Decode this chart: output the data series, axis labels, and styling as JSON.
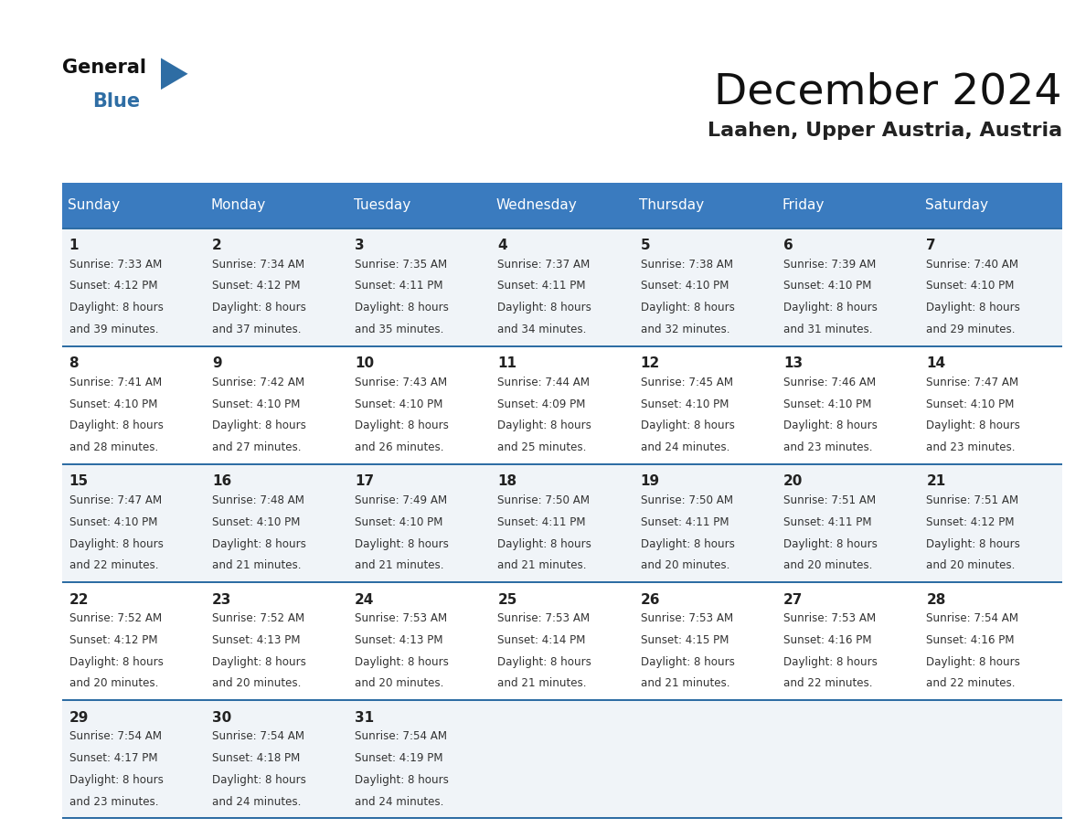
{
  "title": "December 2024",
  "subtitle": "Laahen, Upper Austria, Austria",
  "header_bg": "#3a7bbf",
  "header_text": "#ffffff",
  "days_of_week": [
    "Sunday",
    "Monday",
    "Tuesday",
    "Wednesday",
    "Thursday",
    "Friday",
    "Saturday"
  ],
  "row_bg_odd": "#f0f4f8",
  "row_bg_even": "#ffffff",
  "row_separator_color": "#2e6da4",
  "day_number_color": "#222222",
  "cell_text_color": "#333333",
  "logo_general_color": "#111111",
  "logo_blue_color": "#2e6da4",
  "calendar": [
    [
      {
        "day": 1,
        "sunrise": "7:33 AM",
        "sunset": "4:12 PM",
        "daylight": "8 hours",
        "daylight2": "and 39 minutes."
      },
      {
        "day": 2,
        "sunrise": "7:34 AM",
        "sunset": "4:12 PM",
        "daylight": "8 hours",
        "daylight2": "and 37 minutes."
      },
      {
        "day": 3,
        "sunrise": "7:35 AM",
        "sunset": "4:11 PM",
        "daylight": "8 hours",
        "daylight2": "and 35 minutes."
      },
      {
        "day": 4,
        "sunrise": "7:37 AM",
        "sunset": "4:11 PM",
        "daylight": "8 hours",
        "daylight2": "and 34 minutes."
      },
      {
        "day": 5,
        "sunrise": "7:38 AM",
        "sunset": "4:10 PM",
        "daylight": "8 hours",
        "daylight2": "and 32 minutes."
      },
      {
        "day": 6,
        "sunrise": "7:39 AM",
        "sunset": "4:10 PM",
        "daylight": "8 hours",
        "daylight2": "and 31 minutes."
      },
      {
        "day": 7,
        "sunrise": "7:40 AM",
        "sunset": "4:10 PM",
        "daylight": "8 hours",
        "daylight2": "and 29 minutes."
      }
    ],
    [
      {
        "day": 8,
        "sunrise": "7:41 AM",
        "sunset": "4:10 PM",
        "daylight": "8 hours",
        "daylight2": "and 28 minutes."
      },
      {
        "day": 9,
        "sunrise": "7:42 AM",
        "sunset": "4:10 PM",
        "daylight": "8 hours",
        "daylight2": "and 27 minutes."
      },
      {
        "day": 10,
        "sunrise": "7:43 AM",
        "sunset": "4:10 PM",
        "daylight": "8 hours",
        "daylight2": "and 26 minutes."
      },
      {
        "day": 11,
        "sunrise": "7:44 AM",
        "sunset": "4:09 PM",
        "daylight": "8 hours",
        "daylight2": "and 25 minutes."
      },
      {
        "day": 12,
        "sunrise": "7:45 AM",
        "sunset": "4:10 PM",
        "daylight": "8 hours",
        "daylight2": "and 24 minutes."
      },
      {
        "day": 13,
        "sunrise": "7:46 AM",
        "sunset": "4:10 PM",
        "daylight": "8 hours",
        "daylight2": "and 23 minutes."
      },
      {
        "day": 14,
        "sunrise": "7:47 AM",
        "sunset": "4:10 PM",
        "daylight": "8 hours",
        "daylight2": "and 23 minutes."
      }
    ],
    [
      {
        "day": 15,
        "sunrise": "7:47 AM",
        "sunset": "4:10 PM",
        "daylight": "8 hours",
        "daylight2": "and 22 minutes."
      },
      {
        "day": 16,
        "sunrise": "7:48 AM",
        "sunset": "4:10 PM",
        "daylight": "8 hours",
        "daylight2": "and 21 minutes."
      },
      {
        "day": 17,
        "sunrise": "7:49 AM",
        "sunset": "4:10 PM",
        "daylight": "8 hours",
        "daylight2": "and 21 minutes."
      },
      {
        "day": 18,
        "sunrise": "7:50 AM",
        "sunset": "4:11 PM",
        "daylight": "8 hours",
        "daylight2": "and 21 minutes."
      },
      {
        "day": 19,
        "sunrise": "7:50 AM",
        "sunset": "4:11 PM",
        "daylight": "8 hours",
        "daylight2": "and 20 minutes."
      },
      {
        "day": 20,
        "sunrise": "7:51 AM",
        "sunset": "4:11 PM",
        "daylight": "8 hours",
        "daylight2": "and 20 minutes."
      },
      {
        "day": 21,
        "sunrise": "7:51 AM",
        "sunset": "4:12 PM",
        "daylight": "8 hours",
        "daylight2": "and 20 minutes."
      }
    ],
    [
      {
        "day": 22,
        "sunrise": "7:52 AM",
        "sunset": "4:12 PM",
        "daylight": "8 hours",
        "daylight2": "and 20 minutes."
      },
      {
        "day": 23,
        "sunrise": "7:52 AM",
        "sunset": "4:13 PM",
        "daylight": "8 hours",
        "daylight2": "and 20 minutes."
      },
      {
        "day": 24,
        "sunrise": "7:53 AM",
        "sunset": "4:13 PM",
        "daylight": "8 hours",
        "daylight2": "and 20 minutes."
      },
      {
        "day": 25,
        "sunrise": "7:53 AM",
        "sunset": "4:14 PM",
        "daylight": "8 hours",
        "daylight2": "and 21 minutes."
      },
      {
        "day": 26,
        "sunrise": "7:53 AM",
        "sunset": "4:15 PM",
        "daylight": "8 hours",
        "daylight2": "and 21 minutes."
      },
      {
        "day": 27,
        "sunrise": "7:53 AM",
        "sunset": "4:16 PM",
        "daylight": "8 hours",
        "daylight2": "and 22 minutes."
      },
      {
        "day": 28,
        "sunrise": "7:54 AM",
        "sunset": "4:16 PM",
        "daylight": "8 hours",
        "daylight2": "and 22 minutes."
      }
    ],
    [
      {
        "day": 29,
        "sunrise": "7:54 AM",
        "sunset": "4:17 PM",
        "daylight": "8 hours",
        "daylight2": "and 23 minutes."
      },
      {
        "day": 30,
        "sunrise": "7:54 AM",
        "sunset": "4:18 PM",
        "daylight": "8 hours",
        "daylight2": "and 24 minutes."
      },
      {
        "day": 31,
        "sunrise": "7:54 AM",
        "sunset": "4:19 PM",
        "daylight": "8 hours",
        "daylight2": "and 24 minutes."
      },
      null,
      null,
      null,
      null
    ]
  ]
}
